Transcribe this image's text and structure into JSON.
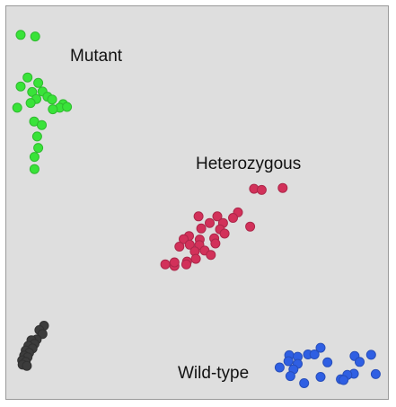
{
  "chart_data": {
    "type": "scatter",
    "title": "",
    "xlabel": "",
    "ylabel": "",
    "xlim": [
      0,
      1
    ],
    "ylim": [
      0,
      1
    ],
    "grid": false,
    "series": [
      {
        "key": "mutant",
        "name": "Mutant",
        "color": "#39e339",
        "points": [
          [
            0.04,
            0.925
          ],
          [
            0.078,
            0.921
          ],
          [
            0.058,
            0.817
          ],
          [
            0.086,
            0.803
          ],
          [
            0.04,
            0.794
          ],
          [
            0.097,
            0.781
          ],
          [
            0.07,
            0.78
          ],
          [
            0.11,
            0.768
          ],
          [
            0.081,
            0.762
          ],
          [
            0.122,
            0.761
          ],
          [
            0.066,
            0.752
          ],
          [
            0.151,
            0.749
          ],
          [
            0.142,
            0.74
          ],
          [
            0.124,
            0.736
          ],
          [
            0.161,
            0.742
          ],
          [
            0.031,
            0.74
          ],
          [
            0.075,
            0.705
          ],
          [
            0.095,
            0.696
          ],
          [
            0.083,
            0.667
          ],
          [
            0.086,
            0.638
          ],
          [
            0.076,
            0.615
          ],
          [
            0.076,
            0.584
          ]
        ]
      },
      {
        "key": "heterozygous",
        "name": "Heterozygous",
        "color": "#d2315a",
        "points": [
          [
            0.65,
            0.534
          ],
          [
            0.67,
            0.531
          ],
          [
            0.725,
            0.536
          ],
          [
            0.608,
            0.474
          ],
          [
            0.554,
            0.464
          ],
          [
            0.595,
            0.46
          ],
          [
            0.505,
            0.464
          ],
          [
            0.569,
            0.447
          ],
          [
            0.534,
            0.447
          ],
          [
            0.64,
            0.438
          ],
          [
            0.561,
            0.431
          ],
          [
            0.512,
            0.433
          ],
          [
            0.573,
            0.42
          ],
          [
            0.48,
            0.414
          ],
          [
            0.546,
            0.408
          ],
          [
            0.508,
            0.405
          ],
          [
            0.466,
            0.406
          ],
          [
            0.482,
            0.392
          ],
          [
            0.507,
            0.391
          ],
          [
            0.549,
            0.395
          ],
          [
            0.521,
            0.377
          ],
          [
            0.455,
            0.387
          ],
          [
            0.495,
            0.375
          ],
          [
            0.537,
            0.366
          ],
          [
            0.498,
            0.356
          ],
          [
            0.475,
            0.349
          ],
          [
            0.418,
            0.342
          ],
          [
            0.442,
            0.338
          ],
          [
            0.473,
            0.342
          ],
          [
            0.442,
            0.347
          ]
        ]
      },
      {
        "key": "wildtype",
        "name": "Wild-type",
        "color": "#2f5fe3",
        "points": [
          [
            0.824,
            0.13
          ],
          [
            0.791,
            0.113
          ],
          [
            0.742,
            0.111
          ],
          [
            0.764,
            0.107
          ],
          [
            0.808,
            0.113
          ],
          [
            0.956,
            0.112
          ],
          [
            0.913,
            0.109
          ],
          [
            0.842,
            0.093
          ],
          [
            0.764,
            0.089
          ],
          [
            0.74,
            0.096
          ],
          [
            0.926,
            0.094
          ],
          [
            0.717,
            0.08
          ],
          [
            0.753,
            0.075
          ],
          [
            0.911,
            0.064
          ],
          [
            0.968,
            0.063
          ],
          [
            0.745,
            0.058
          ],
          [
            0.824,
            0.056
          ],
          [
            0.894,
            0.061
          ],
          [
            0.877,
            0.05
          ],
          [
            0.781,
            0.04
          ],
          [
            0.884,
            0.048
          ]
        ]
      },
      {
        "key": "undetermined",
        "color": "#3c3c3c",
        "points": [
          [
            0.101,
            0.186
          ],
          [
            0.089,
            0.175
          ],
          [
            0.097,
            0.165
          ],
          [
            0.082,
            0.151
          ],
          [
            0.068,
            0.149
          ],
          [
            0.076,
            0.14
          ],
          [
            0.06,
            0.135
          ],
          [
            0.071,
            0.128
          ],
          [
            0.053,
            0.123
          ],
          [
            0.062,
            0.117
          ],
          [
            0.049,
            0.11
          ],
          [
            0.058,
            0.106
          ],
          [
            0.044,
            0.098
          ],
          [
            0.053,
            0.094
          ],
          [
            0.045,
            0.087
          ],
          [
            0.056,
            0.084
          ]
        ]
      }
    ],
    "annotations": [
      {
        "key": "mutant",
        "text": "Mutant"
      },
      {
        "key": "heterozygous",
        "text": "Heterozygous"
      },
      {
        "key": "wildtype",
        "text": "Wild-type"
      }
    ]
  },
  "colors": {
    "panel_background": "#dedede",
    "panel_border": "#9a9a9a",
    "page_background": "#ffffff",
    "label_text": "#111111"
  }
}
